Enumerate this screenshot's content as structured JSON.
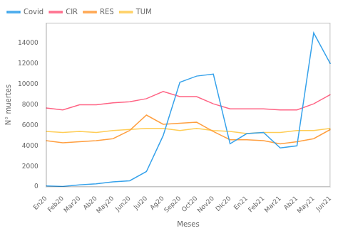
{
  "chart_data": {
    "type": "line",
    "categories": [
      "En20",
      "Feb20",
      "Mar20",
      "Ab20",
      "May20",
      "Jun20",
      "Jul20",
      "Ag20",
      "Sep20",
      "Oct20",
      "Nov20",
      "Dic20",
      "En21",
      "Feb21",
      "Mar21",
      "Ab21",
      "May21",
      "Jun21"
    ],
    "series": [
      {
        "name": "Covid",
        "values": [
          100,
          50,
          200,
          300,
          500,
          600,
          1500,
          5000,
          10200,
          10800,
          11000,
          4200,
          5200,
          5300,
          3800,
          4000,
          15000,
          12000
        ]
      },
      {
        "name": "CIR",
        "values": [
          7700,
          7500,
          8000,
          8000,
          8200,
          8300,
          8600,
          9300,
          8800,
          8800,
          8100,
          7600,
          7600,
          7600,
          7500,
          7500,
          8100,
          9000
        ]
      },
      {
        "name": "RES",
        "values": [
          4500,
          4300,
          4400,
          4500,
          4700,
          5500,
          7000,
          6100,
          6200,
          6300,
          5400,
          4600,
          4600,
          4500,
          4200,
          4400,
          4700,
          5600
        ]
      },
      {
        "name": "TUM",
        "values": [
          5400,
          5300,
          5400,
          5300,
          5500,
          5600,
          5700,
          5700,
          5500,
          5700,
          5500,
          5400,
          5200,
          5300,
          5300,
          5500,
          5500,
          5700
        ]
      }
    ],
    "x_label": "Meses",
    "y_label": "N° muertes",
    "ylim": [
      0,
      16000
    ],
    "yticks": [
      0,
      2000,
      4000,
      6000,
      8000,
      10000,
      12000,
      14000
    ],
    "grid": false,
    "legend": "upper left"
  }
}
